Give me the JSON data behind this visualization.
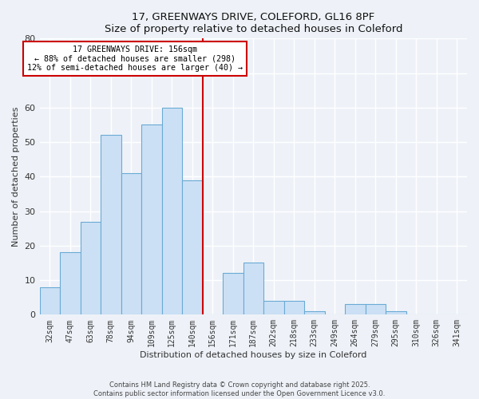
{
  "title1": "17, GREENWAYS DRIVE, COLEFORD, GL16 8PF",
  "title2": "Size of property relative to detached houses in Coleford",
  "xlabel": "Distribution of detached houses by size in Coleford",
  "ylabel": "Number of detached properties",
  "bar_labels": [
    "32sqm",
    "47sqm",
    "63sqm",
    "78sqm",
    "94sqm",
    "109sqm",
    "125sqm",
    "140sqm",
    "156sqm",
    "171sqm",
    "187sqm",
    "202sqm",
    "218sqm",
    "233sqm",
    "249sqm",
    "264sqm",
    "279sqm",
    "295sqm",
    "310sqm",
    "326sqm",
    "341sqm"
  ],
  "bar_values": [
    8,
    18,
    27,
    52,
    41,
    55,
    60,
    39,
    0,
    12,
    15,
    4,
    4,
    1,
    0,
    3,
    3,
    1,
    0,
    0,
    0
  ],
  "bar_color": "#cce0f5",
  "bar_edge_color": "#6aaad4",
  "vline_color": "#cc0000",
  "annotation_title": "17 GREENWAYS DRIVE: 156sqm",
  "annotation_line1": "← 88% of detached houses are smaller (298)",
  "annotation_line2": "12% of semi-detached houses are larger (40) →",
  "annotation_box_color": "#cc0000",
  "ylim": [
    0,
    80
  ],
  "yticks": [
    0,
    10,
    20,
    30,
    40,
    50,
    60,
    70,
    80
  ],
  "footer1": "Contains HM Land Registry data © Crown copyright and database right 2025.",
  "footer2": "Contains public sector information licensed under the Open Government Licence v3.0.",
  "bg_color": "#eef2f8",
  "plot_bg_color": "#eef2f8",
  "grid_color": "#ffffff"
}
